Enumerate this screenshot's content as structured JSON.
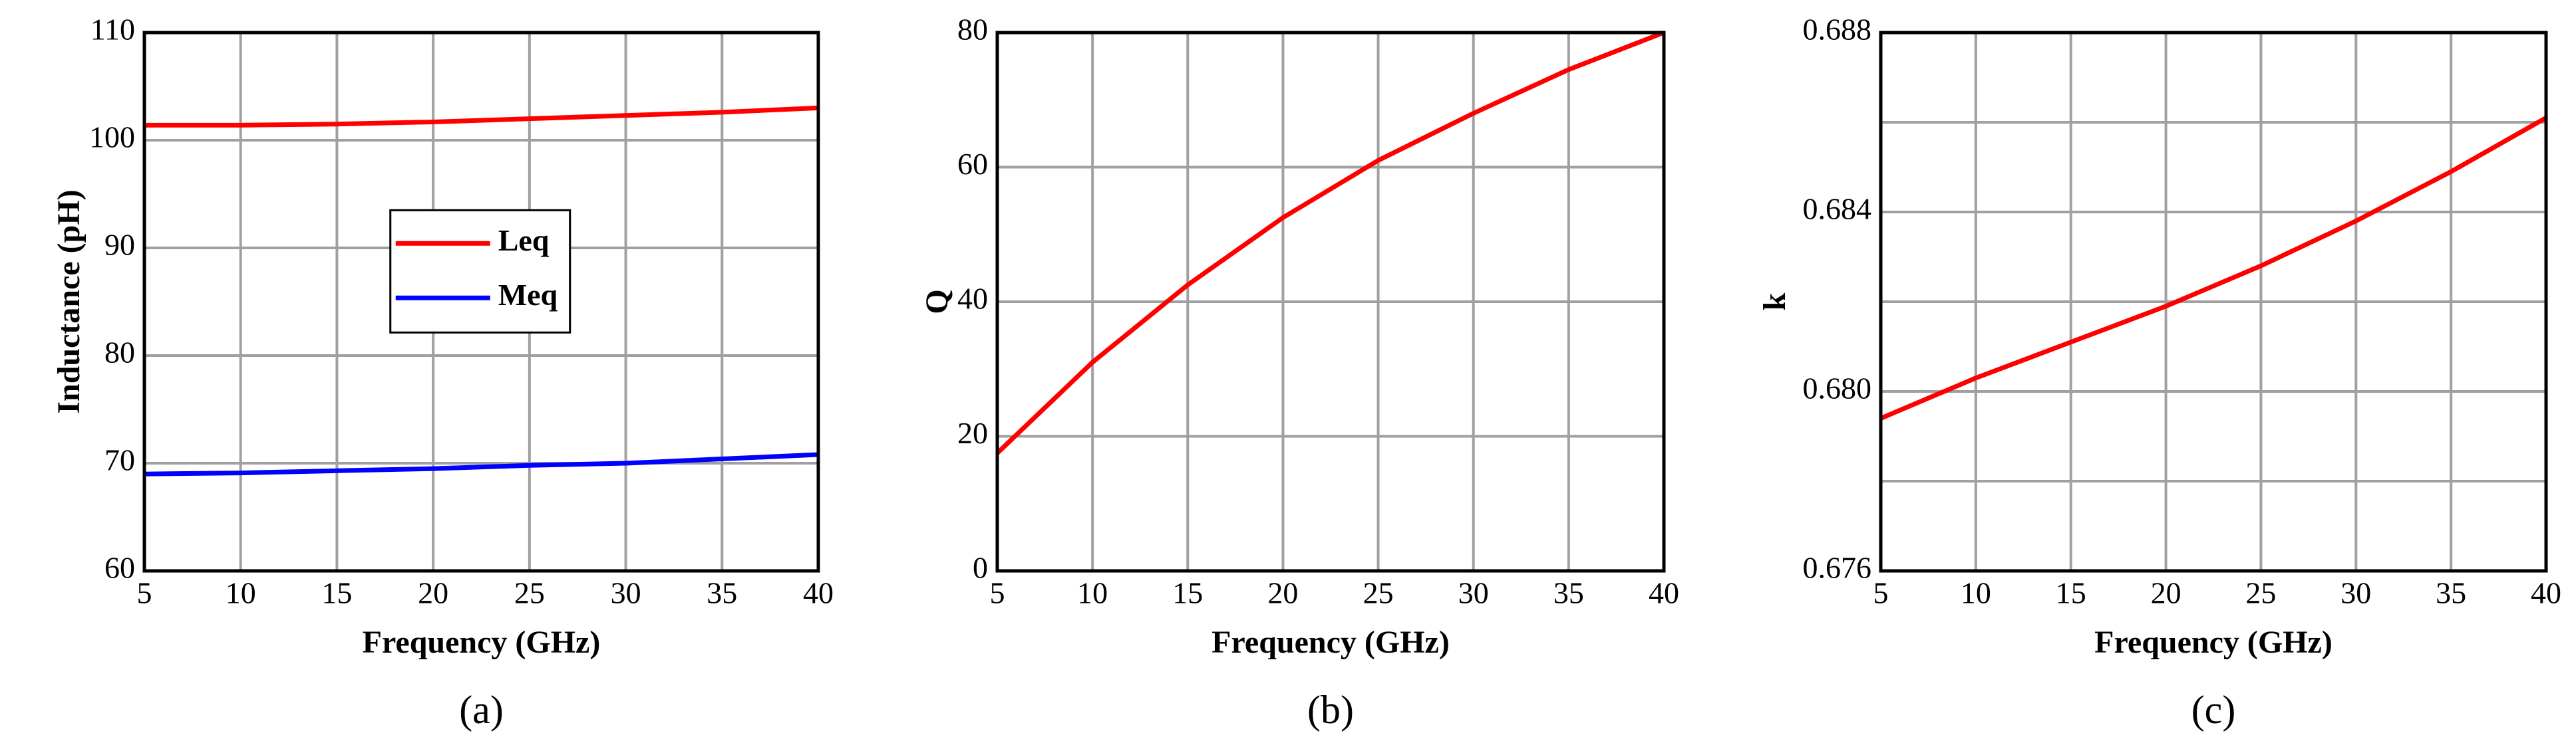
{
  "chart_data": [
    {
      "type": "line",
      "caption": "(a)",
      "xlabel": "Frequency (GHz)",
      "ylabel": "Inductance (pH)",
      "x": [
        5,
        10,
        15,
        20,
        25,
        30,
        35,
        40
      ],
      "series": [
        {
          "name": "Leq",
          "color": "#ff0000",
          "values": [
            101.4,
            101.4,
            101.5,
            101.7,
            102.0,
            102.3,
            102.6,
            103.0
          ]
        },
        {
          "name": "Meq",
          "color": "#0000ff",
          "values": [
            69.0,
            69.1,
            69.3,
            69.5,
            69.8,
            70.0,
            70.4,
            70.8
          ]
        }
      ],
      "xlim": [
        5,
        40
      ],
      "ylim": [
        60,
        110
      ],
      "xticks": [
        5,
        10,
        15,
        20,
        25,
        30,
        35,
        40
      ],
      "yticks": [
        60,
        70,
        80,
        90,
        100,
        110
      ],
      "grid": true,
      "legend": "center"
    },
    {
      "type": "line",
      "caption": "(b)",
      "xlabel": "Frequency (GHz)",
      "ylabel": "Q",
      "x": [
        5,
        10,
        15,
        20,
        25,
        30,
        35,
        40
      ],
      "series": [
        {
          "color": "#ff0000",
          "values": [
            17.5,
            31,
            42.5,
            52.5,
            61,
            68,
            74.5,
            80
          ]
        }
      ],
      "xlim": [
        5,
        40
      ],
      "ylim": [
        0,
        80
      ],
      "xticks": [
        5,
        10,
        15,
        20,
        25,
        30,
        35,
        40
      ],
      "yticks": [
        0,
        20,
        40,
        60,
        80
      ],
      "grid": true
    },
    {
      "type": "line",
      "caption": "(c)",
      "xlabel": "Frequency (GHz)",
      "ylabel": "k",
      "x": [
        5,
        10,
        15,
        20,
        25,
        30,
        35,
        40
      ],
      "series": [
        {
          "color": "#ff0000",
          "values": [
            0.6794,
            0.6803,
            0.6811,
            0.6819,
            0.6828,
            0.6838,
            0.6849,
            0.6861
          ]
        }
      ],
      "xlim": [
        5,
        40
      ],
      "ylim": [
        0.676,
        0.688
      ],
      "xticks": [
        5,
        10,
        15,
        20,
        25,
        30,
        35,
        40
      ],
      "yticks": [
        0.676,
        {
          "value": 0.68,
          "label": "0.680"
        },
        0.684,
        0.688
      ],
      "yminor": [
        0.678,
        0.682,
        0.686
      ],
      "grid": true
    }
  ]
}
